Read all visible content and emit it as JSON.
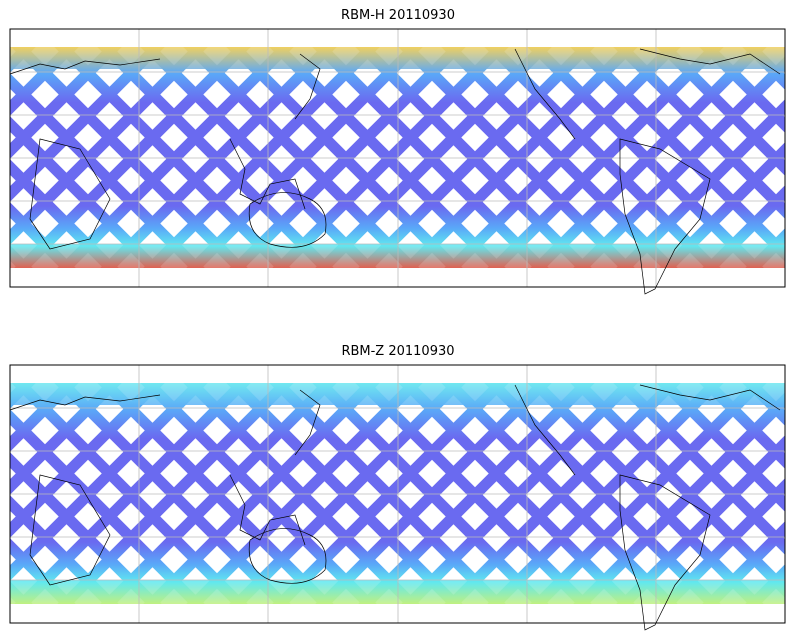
{
  "panels": [
    {
      "title": "RBM-H 20110930",
      "colors": {
        "swath": "#6a6af0",
        "midlat": "#5aa8f8",
        "high_north": "#f0d060",
        "high_south": "#e06050"
      }
    },
    {
      "title": "RBM-Z 20110930",
      "colors": {
        "swath": "#6a6af0",
        "midlat": "#5aa8f8",
        "high_north": "#70e8f0",
        "high_south": "#c0f080"
      }
    }
  ],
  "colormap": [
    "#5a5af0",
    "#5aa8f8",
    "#60e8f0",
    "#c0f880",
    "#f8f060",
    "#f8a050",
    "#e05858"
  ]
}
